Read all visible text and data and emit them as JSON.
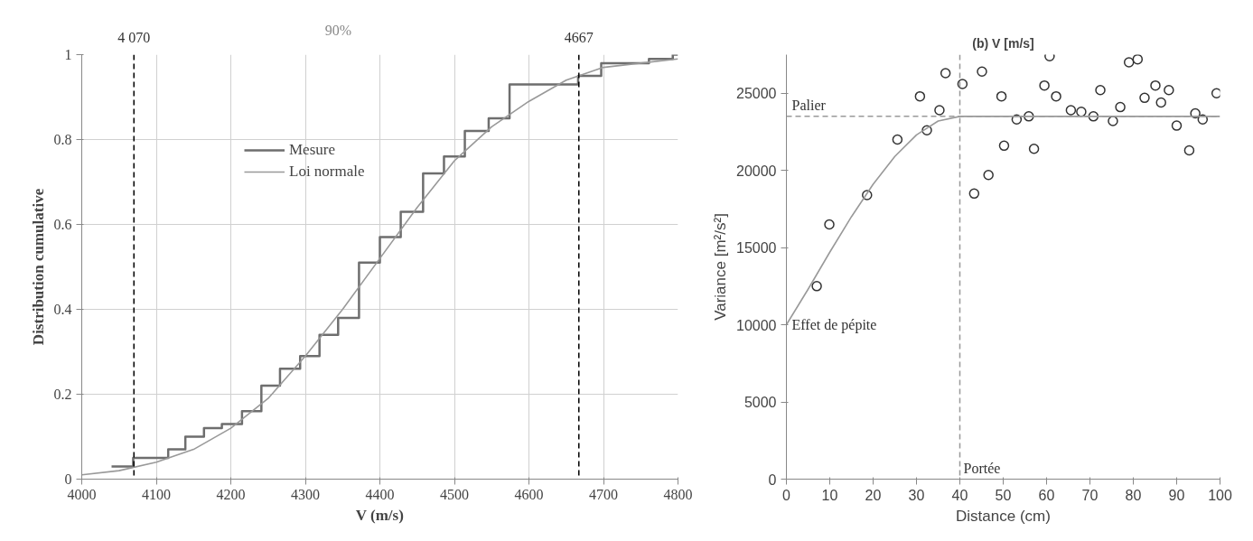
{
  "chart_data": [
    {
      "type": "step",
      "xlabel": "V (m/s)",
      "ylabel": "Distribution cumulative",
      "xlim": [
        4000,
        4800
      ],
      "ylim": [
        0,
        1
      ],
      "xticks": [
        4000,
        4100,
        4200,
        4300,
        4400,
        4500,
        4600,
        4700,
        4800
      ],
      "yticks": [
        0,
        0.2,
        0.4,
        0.6,
        0.8,
        1
      ],
      "grid": true,
      "legend": "top left",
      "annotations": [
        "90%"
      ],
      "ref_lines": [
        {
          "axis": "x",
          "value": 4070,
          "label": "4 070",
          "color": "#000000",
          "line_style": "dashed"
        },
        {
          "axis": "x",
          "value": 4667,
          "label": "4667",
          "color": "#000000",
          "line_style": "dashed"
        }
      ],
      "series": [
        {
          "name": "Mesure",
          "color": "#6e6e6e",
          "x": [
            4040,
            4069,
            4116,
            4139,
            4164,
            4188,
            4215,
            4241,
            4266,
            4293,
            4319,
            4344,
            4372,
            4400,
            4428,
            4458,
            4486,
            4514,
            4546,
            4574,
            4666,
            4697,
            4761,
            4793,
            4800
          ],
          "values": [
            0.03,
            0.05,
            0.07,
            0.1,
            0.12,
            0.13,
            0.16,
            0.22,
            0.26,
            0.29,
            0.34,
            0.38,
            0.51,
            0.57,
            0.63,
            0.72,
            0.76,
            0.82,
            0.85,
            0.93,
            0.95,
            0.98,
            0.99,
            1.0,
            1.0
          ]
        },
        {
          "name": "Loi normale",
          "type": "line",
          "color": "#999999",
          "x": [
            4000,
            4050,
            4100,
            4150,
            4200,
            4250,
            4300,
            4350,
            4400,
            4450,
            4500,
            4550,
            4600,
            4650,
            4700,
            4750,
            4800
          ],
          "values": [
            0.01,
            0.02,
            0.04,
            0.07,
            0.12,
            0.19,
            0.29,
            0.4,
            0.52,
            0.64,
            0.75,
            0.83,
            0.89,
            0.94,
            0.97,
            0.98,
            0.99
          ]
        }
      ]
    },
    {
      "type": "scatter",
      "title": "(b) V [m/s]",
      "xlabel": "Distance (cm)",
      "ylabel": "Variance [m²/s²]",
      "xlim": [
        0,
        100
      ],
      "ylim": [
        0,
        27500
      ],
      "xticks": [
        0,
        10,
        20,
        30,
        40,
        50,
        60,
        70,
        80,
        90,
        100
      ],
      "yticks": [
        0,
        5000,
        10000,
        15000,
        20000,
        25000
      ],
      "grid": false,
      "annotations": [
        {
          "text": "Effet de pépite",
          "x": 0,
          "y": 10000
        }
      ],
      "ref_lines": [
        {
          "axis": "y",
          "value": 23500,
          "label": "Palier",
          "color": "#999999",
          "line_style": "dashed"
        },
        {
          "axis": "x",
          "value": 40,
          "label": "Portée",
          "color": "#999999",
          "line_style": "dashed"
        }
      ],
      "series": [
        {
          "marker": "circle",
          "color": "#333333",
          "x": [
            7.0,
            9.9,
            18.6,
            25.6,
            30.8,
            32.4,
            35.3,
            36.7,
            40.6,
            43.3,
            45.1,
            46.6,
            49.6,
            50.2,
            53.1,
            55.9,
            57.1,
            59.5,
            60.7,
            62.2,
            65.6,
            68.0,
            70.8,
            72.4,
            75.3,
            77.0,
            79.0,
            81.0,
            82.6,
            85.1,
            86.4,
            88.2,
            90.0,
            92.9,
            94.3,
            96.0,
            99.2
          ],
          "values": [
            12500,
            16500,
            18400,
            22000,
            24800,
            22600,
            23900,
            26300,
            25600,
            18500,
            26400,
            19700,
            24800,
            21600,
            23300,
            23500,
            21400,
            25500,
            27400,
            24800,
            23900,
            23800,
            23500,
            25200,
            23200,
            24100,
            27000,
            27200,
            24700,
            25500,
            24400,
            25200,
            22900,
            21300,
            23700,
            23300,
            25000
          ]
        },
        {
          "type": "line",
          "color": "#999999",
          "x": [
            0,
            5,
            10,
            15,
            20,
            25,
            30,
            35,
            40,
            100
          ],
          "values": [
            10000,
            12300,
            14700,
            17000,
            19100,
            20900,
            22300,
            23200,
            23500,
            23500
          ]
        }
      ]
    }
  ]
}
